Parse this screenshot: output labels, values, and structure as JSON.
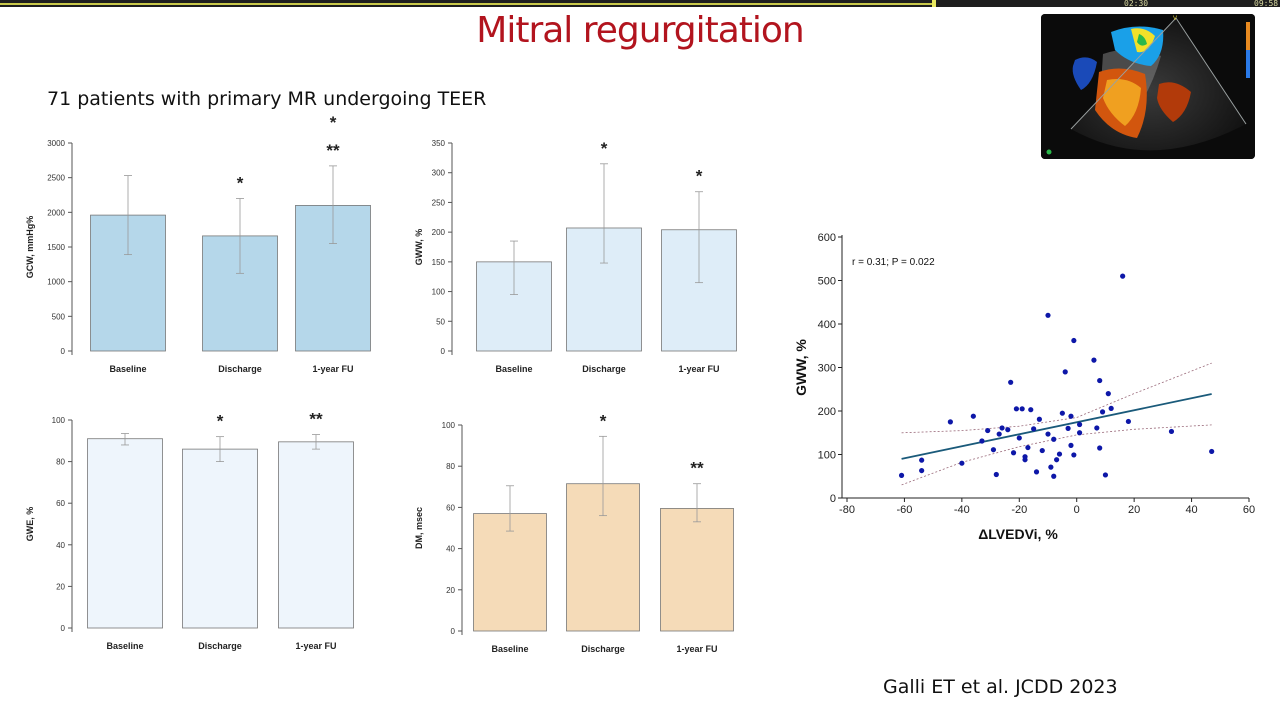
{
  "player": {
    "elapsed": "02:30",
    "duration": "09:58",
    "progress": 0.73
  },
  "slide": {
    "title": "Mitral regurgitation",
    "subtitle": "71 patients with primary MR undergoing TEER",
    "citation": "Galli ET et al. JCDD 2023"
  },
  "echo_image": {
    "label": "Color Doppler echocardiography image",
    "marker": "V"
  },
  "colors": {
    "title": "#b2141e",
    "blue_bar": "#b5d7ea",
    "light_bar": "#deedf8",
    "pale_bar": "#eef5fc",
    "tan_bar": "#f5dbb8",
    "fit_line": "#1a5a7a",
    "points": "#0d17a8"
  },
  "chart_data": [
    {
      "type": "bar",
      "categories": [
        "Baseline",
        "Discharge",
        "1-year FU"
      ],
      "values": [
        1960,
        1660,
        2100
      ],
      "error_low": [
        1390,
        1120,
        1550
      ],
      "error_high": [
        2530,
        2200,
        2670
      ],
      "annotations": [
        "",
        "*",
        "*\n**"
      ],
      "ylabel": "GCW, mmHg%",
      "ylim": [
        0,
        3000
      ],
      "yticks": [
        0,
        500,
        1000,
        1500,
        2000,
        2500,
        3000
      ],
      "color": "#b5d7ea"
    },
    {
      "type": "bar",
      "categories": [
        "Baseline",
        "Discharge",
        "1-year FU"
      ],
      "values": [
        150,
        207,
        204
      ],
      "error_low": [
        95,
        148,
        115
      ],
      "error_high": [
        185,
        315,
        268
      ],
      "annotations": [
        "",
        "*",
        "*"
      ],
      "ylabel": "GWW, %",
      "ylim": [
        0,
        350
      ],
      "yticks": [
        0,
        50,
        100,
        150,
        200,
        250,
        300,
        350
      ],
      "color": "#deedf8"
    },
    {
      "type": "bar",
      "categories": [
        "Baseline",
        "Discharge",
        "1-year FU"
      ],
      "values": [
        91,
        86,
        89.5
      ],
      "error_low": [
        88,
        80,
        86
      ],
      "error_high": [
        93.5,
        92,
        93
      ],
      "annotations": [
        "",
        "*",
        "**"
      ],
      "ylabel": "GWE, %",
      "ylim": [
        0,
        100
      ],
      "yticks": [
        0,
        20,
        40,
        60,
        80,
        100
      ],
      "color": "#eef5fc"
    },
    {
      "type": "bar",
      "categories": [
        "Baseline",
        "Discharge",
        "1-year FU"
      ],
      "values": [
        57,
        71.5,
        59.5
      ],
      "error_low": [
        48.5,
        56,
        53
      ],
      "error_high": [
        70.5,
        94.5,
        71.5
      ],
      "annotations": [
        "",
        "*",
        "**"
      ],
      "ylabel": "DM, msec",
      "ylim": [
        0,
        100
      ],
      "yticks": [
        0,
        20,
        40,
        60,
        80,
        100
      ],
      "color": "#f5dbb8"
    },
    {
      "type": "scatter",
      "xlabel": "ΔLVEDVi, %",
      "ylabel": "GWW, %",
      "annotation": "r = 0.31; P = 0.022",
      "xlim": [
        -80,
        60
      ],
      "ylim": [
        0,
        600
      ],
      "xticks": [
        -80,
        -60,
        -40,
        -20,
        0,
        20,
        40,
        60
      ],
      "yticks": [
        0,
        100,
        200,
        300,
        400,
        500,
        600
      ],
      "fit": {
        "x": [
          -61,
          47
        ],
        "y": [
          90,
          239
        ]
      },
      "ci_lower": {
        "x": [
          -61,
          -40,
          -20,
          0,
          20,
          47
        ],
        "y": [
          30,
          82,
          118,
          145,
          158,
          168
        ]
      },
      "ci_upper": {
        "x": [
          -61,
          -40,
          -20,
          0,
          20,
          47
        ],
        "y": [
          150,
          155,
          165,
          185,
          240,
          310
        ]
      },
      "points": [
        [
          -61,
          52
        ],
        [
          -54,
          63
        ],
        [
          -54,
          87
        ],
        [
          -44,
          175
        ],
        [
          -40,
          80
        ],
        [
          -36,
          188
        ],
        [
          -33,
          131
        ],
        [
          -31,
          155
        ],
        [
          -29,
          111
        ],
        [
          -28,
          54
        ],
        [
          -27,
          147
        ],
        [
          -26,
          161
        ],
        [
          -24,
          157
        ],
        [
          -23,
          266
        ],
        [
          -22,
          104
        ],
        [
          -21,
          205
        ],
        [
          -20,
          138
        ],
        [
          -19,
          205
        ],
        [
          -18,
          88
        ],
        [
          -18,
          95
        ],
        [
          -17,
          116
        ],
        [
          -16,
          203
        ],
        [
          -15,
          159
        ],
        [
          -14,
          60
        ],
        [
          -13,
          181
        ],
        [
          -12,
          109
        ],
        [
          -10,
          420
        ],
        [
          -10,
          147
        ],
        [
          -9,
          71
        ],
        [
          -8,
          50
        ],
        [
          -8,
          135
        ],
        [
          -7,
          88
        ],
        [
          -6,
          101
        ],
        [
          -5,
          195
        ],
        [
          -4,
          290
        ],
        [
          -3,
          160
        ],
        [
          -2,
          188
        ],
        [
          -2,
          121
        ],
        [
          -1,
          362
        ],
        [
          -1,
          99
        ],
        [
          1,
          169
        ],
        [
          1,
          150
        ],
        [
          6,
          317
        ],
        [
          7,
          161
        ],
        [
          8,
          270
        ],
        [
          8,
          115
        ],
        [
          9,
          198
        ],
        [
          10,
          53
        ],
        [
          11,
          240
        ],
        [
          12,
          206
        ],
        [
          16,
          510
        ],
        [
          18,
          176
        ],
        [
          33,
          153
        ],
        [
          47,
          107
        ]
      ]
    }
  ]
}
